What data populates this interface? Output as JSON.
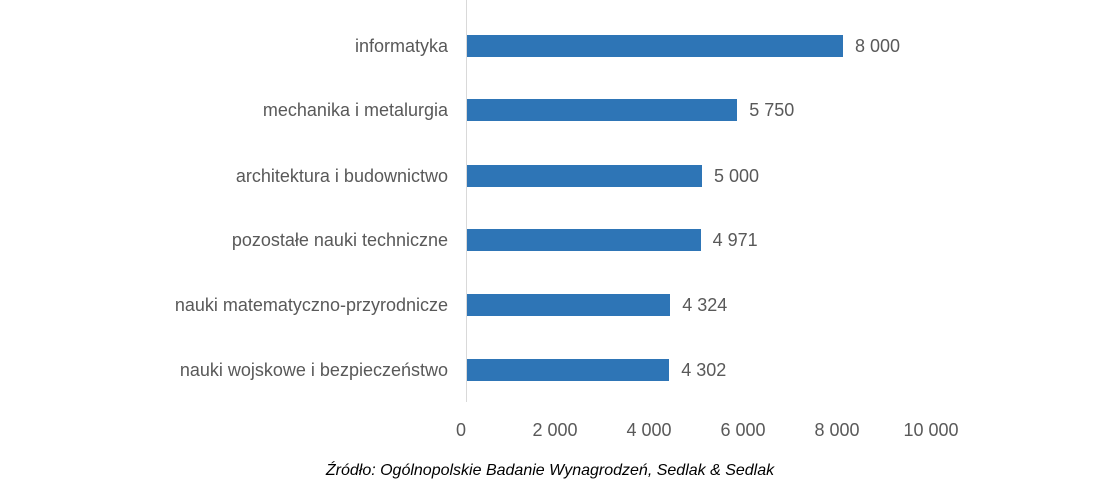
{
  "chart_data": {
    "type": "bar",
    "orientation": "horizontal",
    "title": "",
    "xlabel": "",
    "ylabel": "",
    "categories": [
      "informatyka",
      "mechanika i metalurgia",
      "architektura i budownictwo",
      "pozostałe nauki techniczne",
      "nauki matematyczno-przyrodnicze",
      "nauki wojskowe i bezpieczeństwo"
    ],
    "values": [
      8000,
      5750,
      5000,
      4971,
      4324,
      4302
    ],
    "value_labels": [
      "8 000",
      "5 750",
      "5 000",
      "4 971",
      "4 324",
      "4 302"
    ],
    "xlim": [
      0,
      10000
    ],
    "x_ticks": [
      "0",
      "2 000",
      "4 000",
      "6 000",
      "8 000",
      "10 000"
    ],
    "grid": false,
    "legend": null,
    "bar_color": "#2e75b6",
    "source": "Źródło: Ogólnopolskie Badanie Wynagrodzeń, Sedlak & Sedlak"
  }
}
